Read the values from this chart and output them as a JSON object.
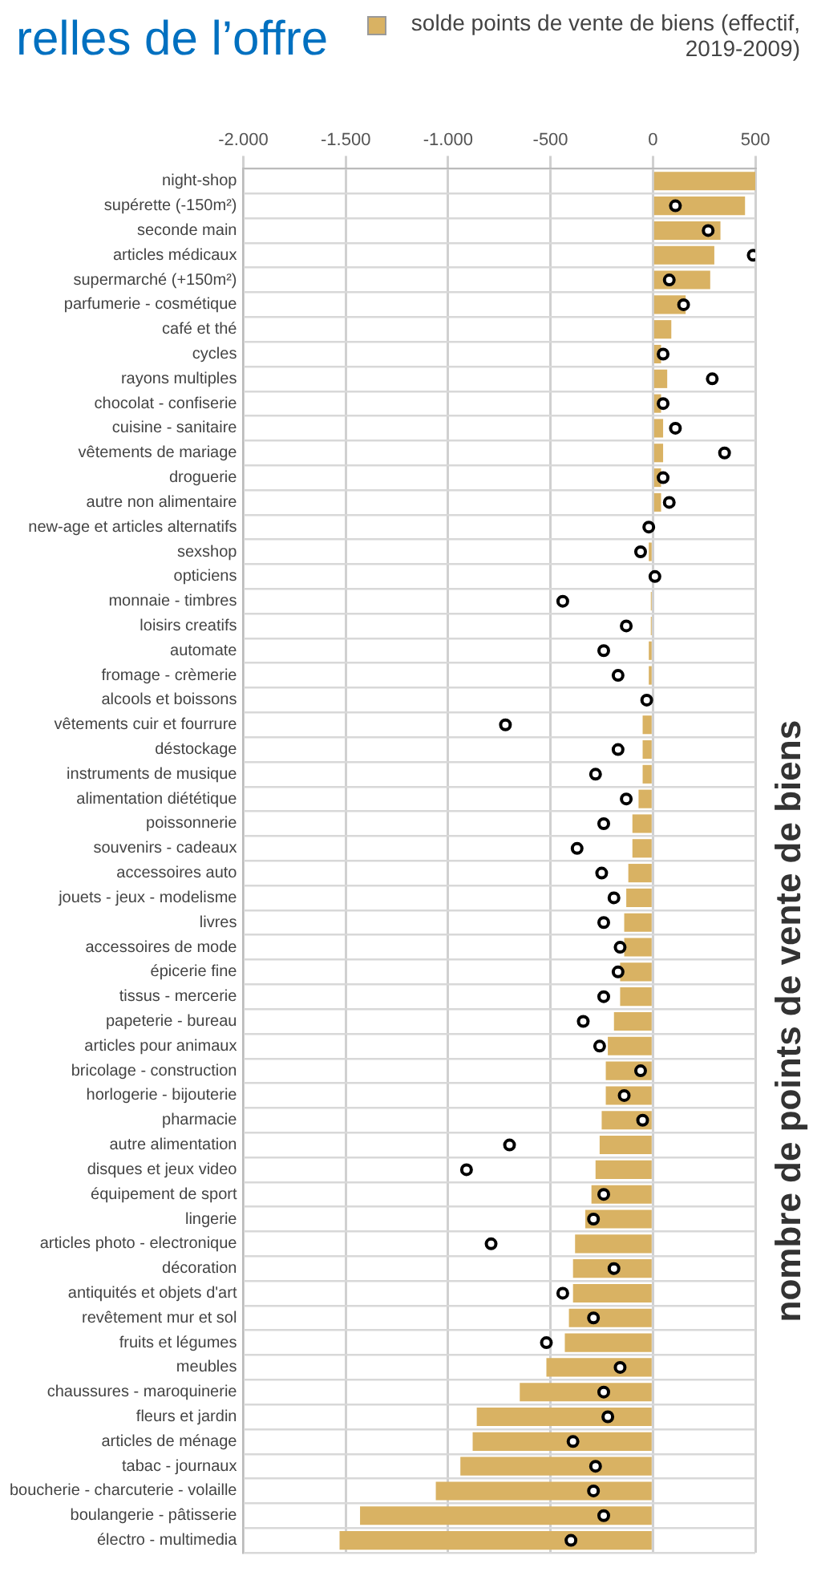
{
  "chart_data": {
    "type": "bar",
    "orientation": "horizontal",
    "title": "relles de l’offre",
    "legend": "top right",
    "grid": true,
    "xlim": [
      -2000,
      500
    ],
    "xticks": [
      {
        "value": -2000,
        "label": "-2.000"
      },
      {
        "value": -1500,
        "label": "-1.500"
      },
      {
        "value": -1000,
        "label": "-1.000"
      },
      -500,
      0,
      500
    ],
    "categories": [
      "night-shop",
      "supérette (-150m²)",
      "seconde main",
      "articles médicaux",
      "supermarché (+150m²)",
      "parfumerie - cosmétique",
      "café et thé",
      "cycles",
      "rayons multiples",
      "chocolat - confiserie",
      "cuisine - sanitaire",
      "vêtements de mariage",
      "droguerie",
      "autre non alimentaire",
      "new-age et articles alternatifs",
      "sexshop",
      "opticiens",
      "monnaie - timbres",
      "loisirs creatifs",
      "automate",
      "fromage - crèmerie",
      "alcools et boissons",
      "vêtements cuir et fourrure",
      "déstockage",
      "instruments de musique",
      "alimentation diététique",
      "poissonnerie",
      "souvenirs - cadeaux",
      "accessoires auto",
      "jouets - jeux - modelisme",
      "livres",
      "accessoires de mode",
      "épicerie fine",
      "tissus - mercerie",
      "papeterie - bureau",
      "articles pour animaux",
      "bricolage - construction",
      "horlogerie - bijouterie",
      "pharmacie",
      "autre alimentation",
      "disques et jeux video",
      "équipement de sport",
      "lingerie",
      "articles photo - electronique",
      "décoration",
      "antiquités et objets d'art",
      "revêtement mur et sol",
      "fruits et légumes",
      "meubles",
      "chaussures - maroquinerie",
      "fleurs et jardin",
      "articles de ménage",
      "tabac - journaux",
      "boucherie - charcuterie - volaille",
      "boulangerie - pâtisserie",
      "électro - multimedia"
    ],
    "series": [
      {
        "name": "solde points de vente de biens (effectif, 2019-2009)",
        "color": "#d9b263",
        "values": [
          500,
          450,
          330,
          300,
          280,
          160,
          90,
          40,
          70,
          40,
          50,
          50,
          40,
          40,
          null,
          -20,
          null,
          -10,
          -10,
          -20,
          -20,
          null,
          -50,
          -50,
          -50,
          -70,
          -100,
          -100,
          -120,
          -130,
          -140,
          -140,
          -160,
          -160,
          -190,
          -220,
          -230,
          -230,
          -250,
          -260,
          -280,
          -300,
          -330,
          -380,
          -390,
          -390,
          -410,
          -430,
          -520,
          -650,
          -860,
          -880,
          -940,
          -1060,
          -1430,
          -1530
        ]
      },
      {
        "type": "scatter",
        "color": "#000000",
        "marker": "circle",
        "values": [
          null,
          110,
          270,
          490,
          80,
          150,
          null,
          50,
          290,
          50,
          110,
          350,
          50,
          80,
          -20,
          -60,
          10,
          -440,
          -130,
          -240,
          -170,
          -30,
          -720,
          -170,
          -280,
          -130,
          -240,
          -370,
          -250,
          -190,
          -240,
          -160,
          -170,
          -240,
          -340,
          -260,
          -60,
          -140,
          -50,
          -700,
          -910,
          -240,
          -290,
          -790,
          -190,
          -440,
          -290,
          -520,
          -160,
          -240,
          -220,
          -390,
          -280,
          -290,
          -240,
          -400
        ]
      }
    ],
    "annotations": [
      "nombre de points de vente de biens"
    ]
  }
}
